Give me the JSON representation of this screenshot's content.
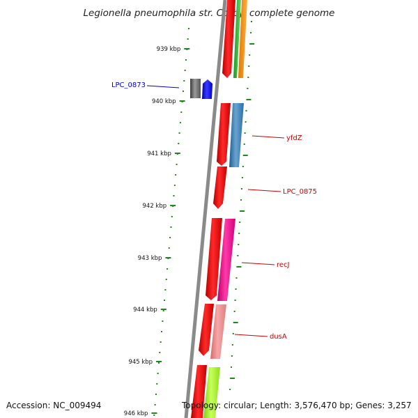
{
  "title": "Legionella pneumophila str. Corby, complete genome",
  "kbp_ticks": [
    "939 kbp",
    "940 kbp",
    "941 kbp",
    "942 kbp",
    "943 kbp",
    "944 kbp",
    "945 kbp",
    "946 kbp"
  ],
  "gene_labels": [
    {
      "name": "LPC_0873",
      "color": "#0000cc"
    },
    {
      "name": "yfdZ",
      "color": "#cc0000"
    },
    {
      "name": "LPC_0875",
      "color": "#cc0000"
    },
    {
      "name": "recJ",
      "color": "#cc0000"
    },
    {
      "name": "dusA",
      "color": "#cc0000"
    }
  ],
  "footer": {
    "accession": "Accession: NC_009494",
    "topology": "Topology: circular; Length: 3,576,470 bp; Genes: 3,257"
  },
  "colors": {
    "backbone": "#808080",
    "tick": "#1a8a1a",
    "cds": "#ff0000",
    "label_line": "#cc0000"
  }
}
